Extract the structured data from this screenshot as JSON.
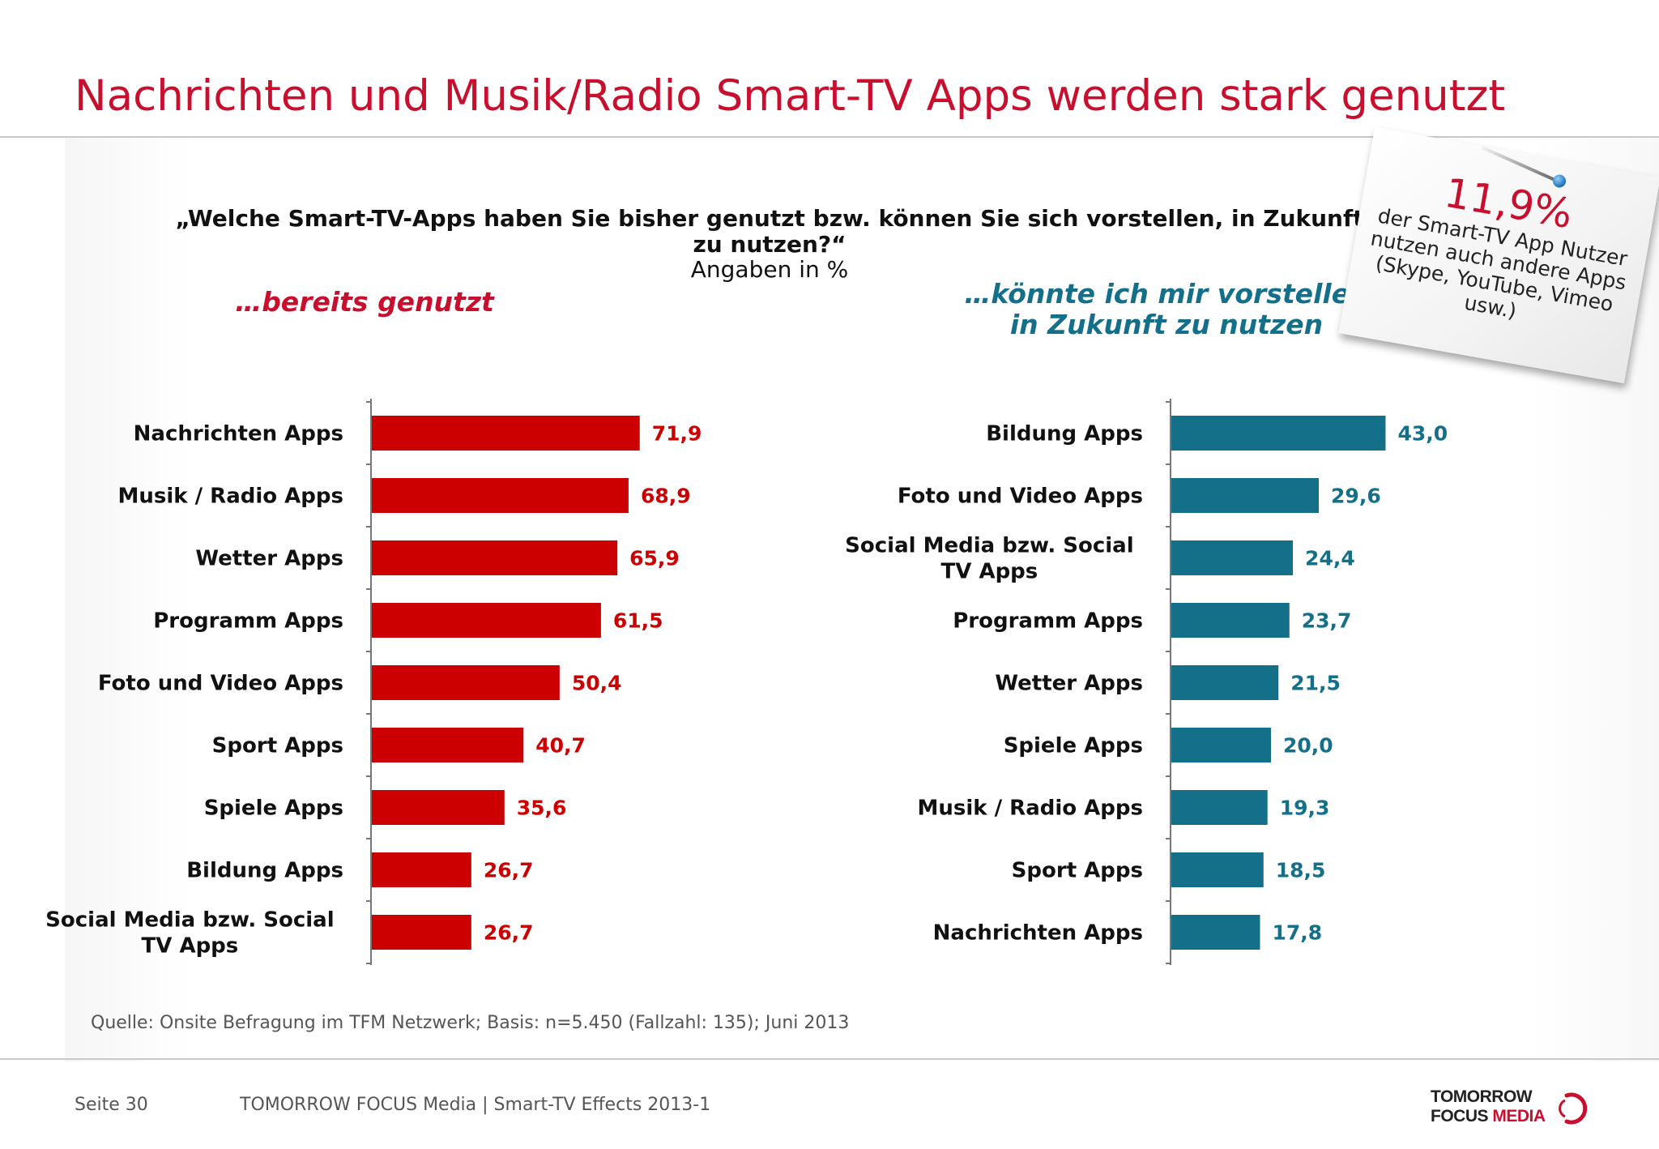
{
  "page": {
    "title": "Nachrichten und Musik/Radio Smart-TV Apps werden stark genutzt",
    "question": "„Welche Smart-TV-Apps haben Sie bisher genutzt bzw. können Sie sich vorstellen, in Zukunft zu nutzen?“",
    "unit": "Angaben in %",
    "left_subtitle": "…bereits genutzt",
    "right_subtitle_line1": "…könnte ich mir vorstellen",
    "right_subtitle_line2": "in Zukunft zu nutzen",
    "source": "Quelle: Onsite Befragung im TFM Netzwerk; Basis: n=5.450 (Fallzahl: 135); Juni 2013"
  },
  "note": {
    "percent": "11,9%",
    "text": "der Smart-TV App Nutzer nutzen auch andere Apps (Skype, YouTube, Vimeo usw.)"
  },
  "footer": {
    "page": "Seite 30",
    "doc": "TOMORROW FOCUS Media  |  Smart-TV Effects 2013-1",
    "logo_line1": "TOMORROW",
    "logo_line2_a": "FOCUS ",
    "logo_line2_b": "MEDIA"
  },
  "colors": {
    "accent_red": "#c8102e",
    "bar_red": "#cc0000",
    "bar_teal": "#137088"
  },
  "chart_data": [
    {
      "type": "bar",
      "orientation": "horizontal",
      "title": "…bereits genutzt",
      "categories": [
        "Nachrichten Apps",
        "Musik / Radio Apps",
        "Wetter Apps",
        "Programm Apps",
        "Foto und Video Apps",
        "Sport Apps",
        "Spiele Apps",
        "Bildung Apps",
        "Social Media bzw. Social TV Apps"
      ],
      "values": [
        71.9,
        68.9,
        65.9,
        61.5,
        50.4,
        40.7,
        35.6,
        26.7,
        26.7
      ],
      "value_labels": [
        "71,9",
        "68,9",
        "65,9",
        "61,5",
        "50,4",
        "40,7",
        "35,6",
        "26,7",
        "26,7"
      ],
      "color": "#cc0000",
      "xlim": [
        0,
        100
      ],
      "grid": false
    },
    {
      "type": "bar",
      "orientation": "horizontal",
      "title": "…könnte ich mir vorstellen in Zukunft zu nutzen",
      "categories": [
        "Bildung Apps",
        "Foto und Video Apps",
        "Social Media bzw. Social TV Apps",
        "Programm Apps",
        "Wetter Apps",
        "Spiele Apps",
        "Musik / Radio Apps",
        "Sport Apps",
        "Nachrichten Apps"
      ],
      "values": [
        43.0,
        29.6,
        24.4,
        23.7,
        21.5,
        20.0,
        19.3,
        18.5,
        17.8
      ],
      "value_labels": [
        "43,0",
        "29,6",
        "24,4",
        "23,7",
        "21,5",
        "20,0",
        "19,3",
        "18,5",
        "17,8"
      ],
      "color": "#137088",
      "xlim": [
        0,
        100
      ],
      "grid": false
    }
  ]
}
